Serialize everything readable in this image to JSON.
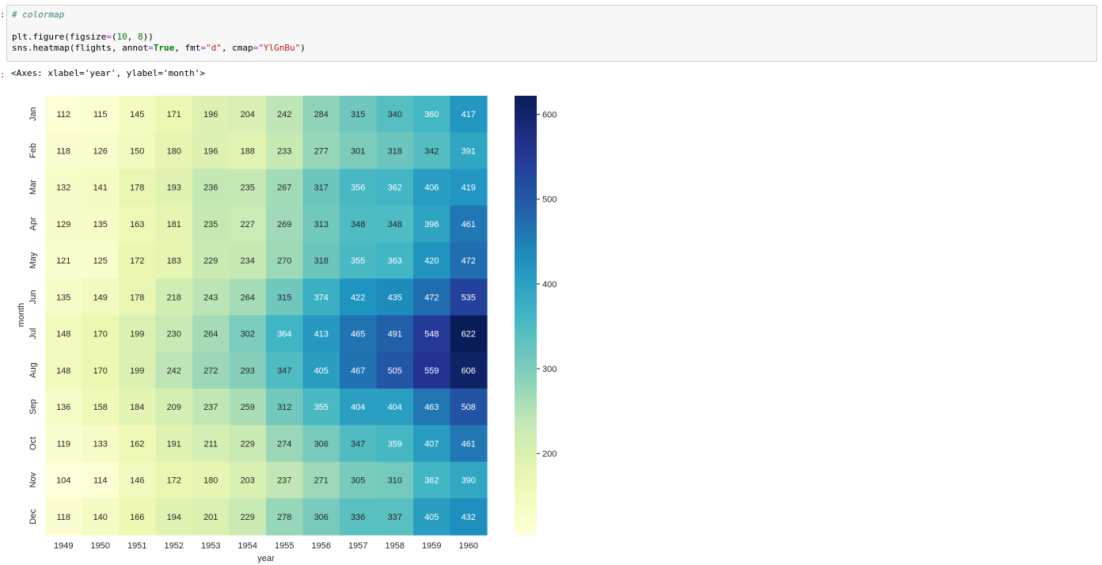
{
  "notebook": {
    "in_prompt": ":",
    "out_prompt": ":",
    "code": {
      "comment": "# colormap",
      "l2_a": "plt.figure(figsize",
      "l2_eq": "=",
      "l2_b": "(",
      "l2_n1": "10",
      "l2_c": ", ",
      "l2_n2": "8",
      "l2_d": "))",
      "l3_a": "sns.heatmap(flights, annot",
      "l3_eq1": "=",
      "l3_true": "True",
      "l3_b": ", fmt",
      "l3_eq2": "=",
      "l3_fmt": "\"d\"",
      "l3_c": ", cmap",
      "l3_eq3": "=",
      "l3_cmap": "\"YlGnBu\"",
      "l3_d": ")"
    },
    "output_text": "<Axes: xlabel='year', ylabel='month'>"
  },
  "chart_data": {
    "type": "heatmap",
    "title": "",
    "xlabel": "year",
    "ylabel": "month",
    "x": [
      "1949",
      "1950",
      "1951",
      "1952",
      "1953",
      "1954",
      "1955",
      "1956",
      "1957",
      "1958",
      "1959",
      "1960"
    ],
    "y": [
      "Jan",
      "Feb",
      "Mar",
      "Apr",
      "May",
      "Jun",
      "Jul",
      "Aug",
      "Sep",
      "Oct",
      "Nov",
      "Dec"
    ],
    "values": [
      [
        112,
        115,
        145,
        171,
        196,
        204,
        242,
        284,
        315,
        340,
        360,
        417
      ],
      [
        118,
        126,
        150,
        180,
        196,
        188,
        233,
        277,
        301,
        318,
        342,
        391
      ],
      [
        132,
        141,
        178,
        193,
        236,
        235,
        267,
        317,
        356,
        362,
        406,
        419
      ],
      [
        129,
        135,
        163,
        181,
        235,
        227,
        269,
        313,
        348,
        348,
        396,
        461
      ],
      [
        121,
        125,
        172,
        183,
        229,
        234,
        270,
        318,
        355,
        363,
        420,
        472
      ],
      [
        135,
        149,
        178,
        218,
        243,
        264,
        315,
        374,
        422,
        435,
        472,
        535
      ],
      [
        148,
        170,
        199,
        230,
        264,
        302,
        364,
        413,
        465,
        491,
        548,
        622
      ],
      [
        148,
        170,
        199,
        242,
        272,
        293,
        347,
        405,
        467,
        505,
        559,
        606
      ],
      [
        136,
        158,
        184,
        209,
        237,
        259,
        312,
        355,
        404,
        404,
        463,
        508
      ],
      [
        119,
        133,
        162,
        191,
        211,
        229,
        274,
        306,
        347,
        359,
        407,
        461
      ],
      [
        104,
        114,
        146,
        172,
        180,
        203,
        237,
        271,
        305,
        310,
        362,
        390
      ],
      [
        118,
        140,
        166,
        194,
        201,
        229,
        278,
        306,
        336,
        337,
        405,
        432
      ]
    ],
    "annot": true,
    "fmt": "d",
    "colormap": "YlGnBu",
    "vmin": 104,
    "vmax": 622,
    "colorbar": {
      "ticks": [
        200,
        300,
        400,
        500,
        600
      ]
    }
  }
}
